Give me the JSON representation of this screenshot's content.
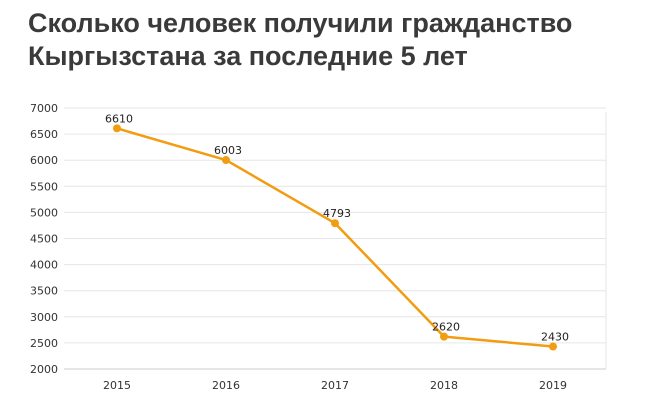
{
  "chart_data": {
    "type": "line",
    "title": "Сколько человек получили гражданство Кыргызстана за последние 5 лет",
    "xlabel": "",
    "ylabel": "",
    "categories": [
      "2015",
      "2016",
      "2017",
      "2018",
      "2019"
    ],
    "series": [
      {
        "values": [
          6610,
          6003,
          4793,
          2620,
          2430
        ],
        "color": "#f29c11"
      }
    ],
    "data_labels": [
      "6610",
      "6003",
      "4793",
      "2620",
      "2430"
    ],
    "ylim": [
      2000,
      7000
    ],
    "yticks": [
      2000,
      2500,
      3000,
      3500,
      4000,
      4500,
      5000,
      5500,
      6000,
      6500,
      7000
    ],
    "ytick_labels": [
      "2000",
      "2500",
      "3000",
      "3500",
      "4000",
      "4500",
      "5000",
      "5500",
      "6000",
      "6500",
      "7000"
    ],
    "grid": true,
    "colors": {
      "line": "#f29c11",
      "grid": "#e6e6e6",
      "axis": "#cccccc"
    }
  }
}
